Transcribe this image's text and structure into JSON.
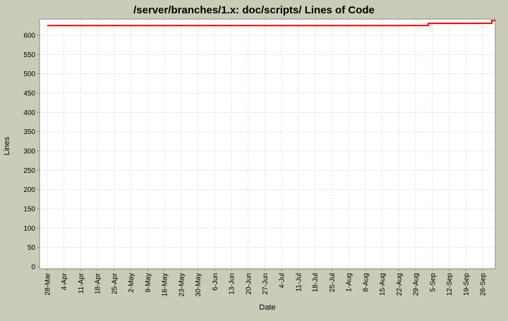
{
  "window": {
    "background_color": "#cbccb8"
  },
  "chart_data": {
    "type": "line",
    "title": "/server/branches/1.x: doc/scripts/ Lines of Code",
    "xlabel": "Date",
    "ylabel": "Lines",
    "x_tick_labels": [
      "28-Mar",
      "4-Apr",
      "11-Apr",
      "18-Apr",
      "25-Apr",
      "2-May",
      "9-May",
      "16-May",
      "23-May",
      "30-May",
      "6-Jun",
      "13-Jun",
      "20-Jun",
      "27-Jun",
      "4-Jul",
      "11-Jul",
      "18-Jul",
      "25-Jul",
      "1-Aug",
      "8-Aug",
      "15-Aug",
      "22-Aug",
      "29-Aug",
      "5-Sep",
      "12-Sep",
      "19-Sep",
      "26-Sep"
    ],
    "y_ticks": [
      0,
      50,
      100,
      150,
      200,
      250,
      300,
      350,
      400,
      450,
      500,
      550,
      600
    ],
    "ylim": [
      0,
      642
    ],
    "grid": true,
    "legend": "none",
    "series": [
      {
        "name": "Lines of Code",
        "color": "#ff0000",
        "points": [
          {
            "week": 0,
            "value": 625
          },
          {
            "week": 22.75,
            "value": 625
          },
          {
            "week": 22.75,
            "value": 631
          },
          {
            "week": 26.55,
            "value": 631
          },
          {
            "week": 26.55,
            "value": 638
          },
          {
            "week": 26.9,
            "value": 638
          }
        ]
      }
    ],
    "styles": {
      "plot_background": "#ffffff",
      "plot_border": "#848484",
      "grid_color": "#dcdcdc",
      "tick_color": "#848484",
      "text_color": "#000000"
    }
  }
}
